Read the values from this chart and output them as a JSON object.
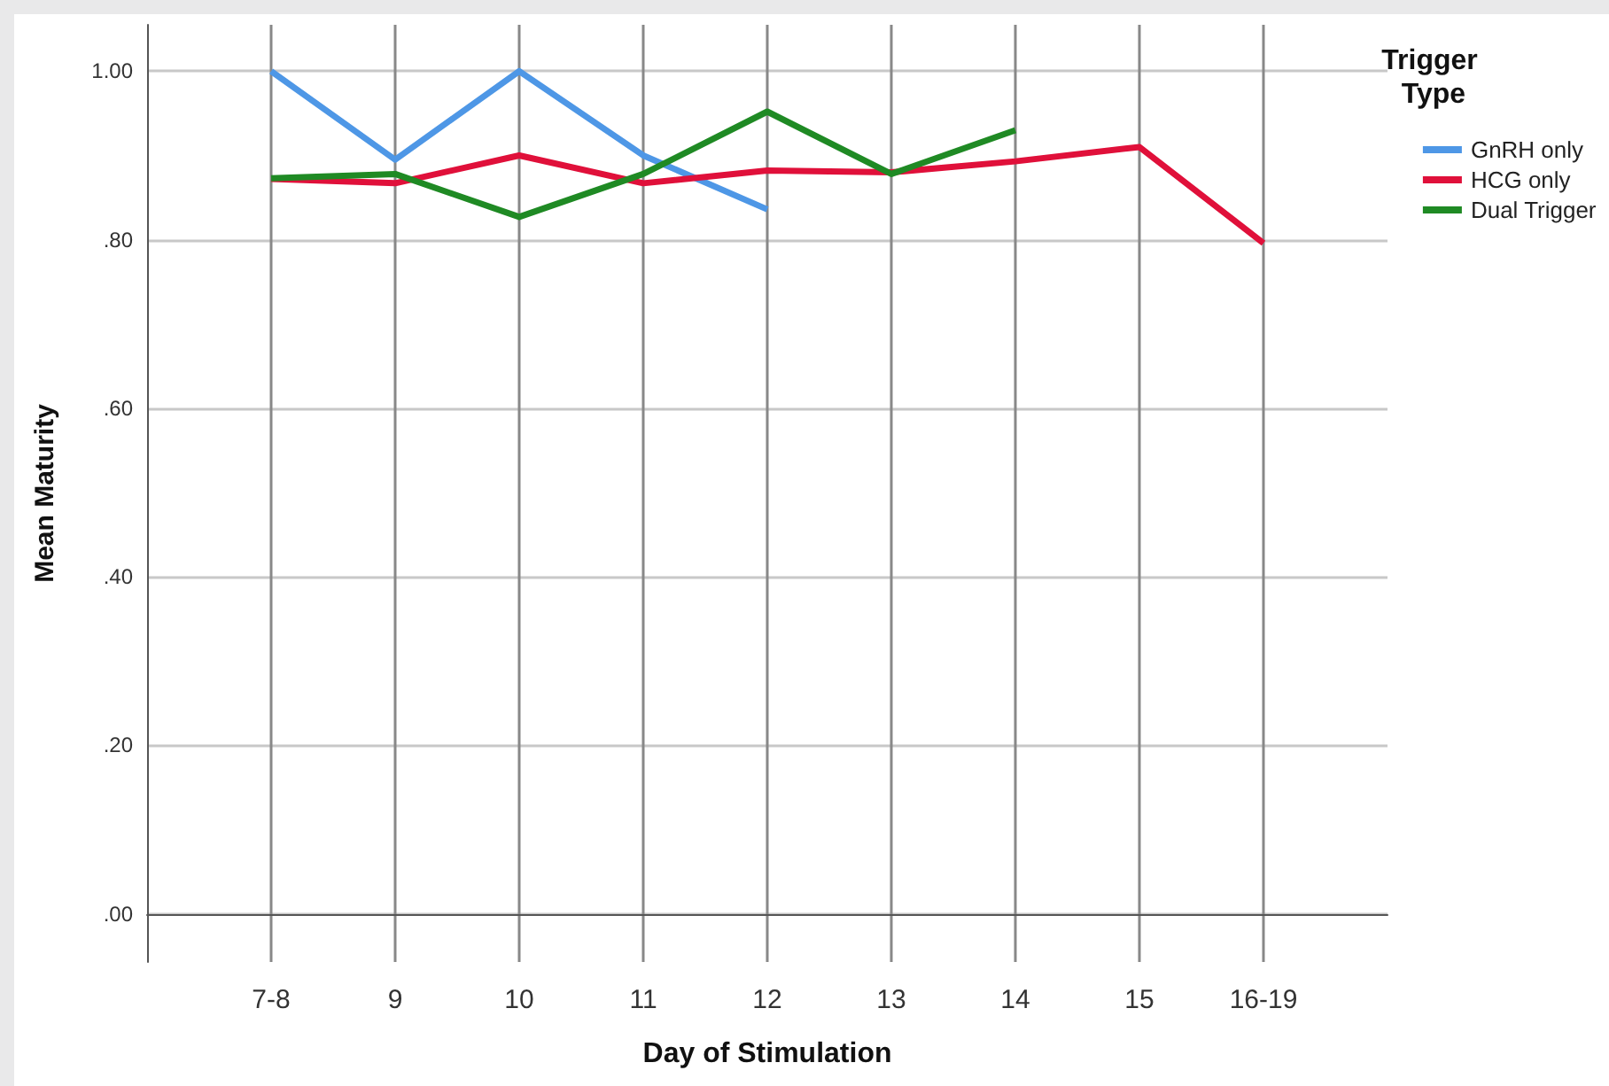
{
  "chart_data": {
    "type": "line",
    "xlabel": "Day of Stimulation",
    "ylabel": "Mean Maturity",
    "legend_title": "Trigger Type",
    "categories": [
      "7-8",
      "9",
      "10",
      "11",
      "12",
      "13",
      "14",
      "15",
      "16-19"
    ],
    "series": [
      {
        "name": "GnRH only",
        "color": "#4e97e6",
        "values": [
          1.0,
          0.895,
          1.0,
          0.9,
          0.836,
          null,
          null,
          null,
          null
        ]
      },
      {
        "name": "HCG only",
        "color": "#e0103a",
        "values": [
          0.872,
          0.867,
          0.9,
          0.867,
          0.882,
          0.88,
          0.893,
          0.91,
          0.796
        ]
      },
      {
        "name": "Dual Trigger",
        "color": "#1f8a24",
        "values": [
          0.873,
          0.878,
          0.827,
          0.878,
          0.952,
          0.878,
          0.93,
          null,
          null
        ]
      }
    ],
    "ylim": [
      -0.057,
      1.055
    ],
    "yticks": [
      {
        "value": 0,
        "label": ".00"
      },
      {
        "value": 0.2,
        "label": ".20"
      },
      {
        "value": 0.4,
        "label": ".40"
      },
      {
        "value": 0.6,
        "label": ".60"
      },
      {
        "value": 0.8,
        "label": ".80"
      },
      {
        "value": 1,
        "label": "1.00"
      }
    ],
    "grid": true,
    "legend": "top right",
    "marker": "none",
    "line_style": "solid"
  }
}
